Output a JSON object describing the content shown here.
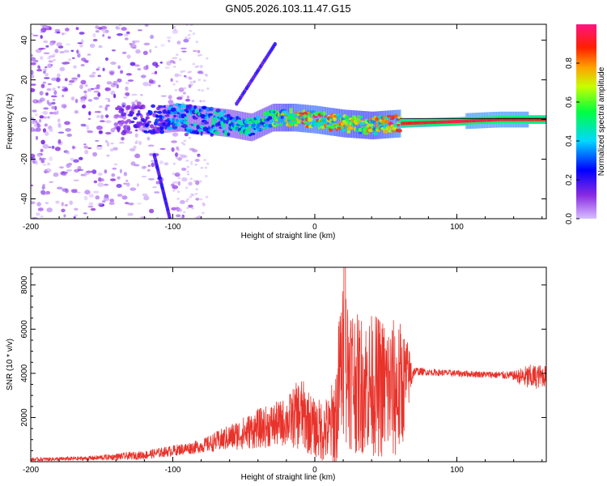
{
  "title": "GN05.2026.103.11.47.G15",
  "colors": {
    "snr_line": "#e8322a",
    "low_amplitude": "#6a1fe8",
    "high_amplitude": "#e8143c"
  },
  "chart_data": [
    {
      "type": "heatmap",
      "title": "GN05.2026.103.11.47.G15",
      "xlabel": "Height of straight line (km)",
      "ylabel": "Frequency (Hz)",
      "xlim": [
        -200,
        163
      ],
      "ylim": [
        -50,
        48
      ],
      "xticks": [
        -200,
        -100,
        0,
        100
      ],
      "yticks": [
        40,
        20,
        0,
        -20,
        -40
      ],
      "colorbar": {
        "label": "Normalized spectral amplitude",
        "range": [
          0.0,
          1.0
        ],
        "ticks": [
          "0.0",
          "0.2",
          "0.4",
          "0.6",
          "0.8"
        ],
        "colormap": "rainbow"
      },
      "ridge": [
        {
          "x": -200,
          "freq": 0,
          "amp": 0.05
        },
        {
          "x": -150,
          "freq": 0,
          "amp": 0.08
        },
        {
          "x": -110,
          "freq": 0,
          "amp": 0.25
        },
        {
          "x": -95,
          "freq": 1,
          "amp": 0.4
        },
        {
          "x": -60,
          "freq": -2,
          "amp": 0.45
        },
        {
          "x": -45,
          "freq": -4,
          "amp": 0.5
        },
        {
          "x": -30,
          "freq": 1,
          "amp": 0.55
        },
        {
          "x": -15,
          "freq": 1,
          "amp": 0.8
        },
        {
          "x": 0,
          "freq": 0,
          "amp": 0.85
        },
        {
          "x": 20,
          "freq": -2,
          "amp": 0.75
        },
        {
          "x": 40,
          "freq": -3,
          "amp": 0.7
        },
        {
          "x": 60,
          "freq": -2,
          "amp": 0.9
        },
        {
          "x": 100,
          "freq": -1,
          "amp": 0.95
        },
        {
          "x": 130,
          "freq": 0,
          "amp": 0.95
        },
        {
          "x": 163,
          "freq": 0,
          "amp": 0.9
        }
      ],
      "noise_region": {
        "x_from": -200,
        "x_to": -78,
        "freq_from": -50,
        "freq_to": 48,
        "amp": 0.1
      },
      "streaks": [
        {
          "label": "descending streak",
          "x": [
            -113,
            -102
          ],
          "freq": [
            -18,
            -50
          ]
        },
        {
          "label": "ascending streak",
          "x": [
            -55,
            -28
          ],
          "freq": [
            8,
            38
          ]
        }
      ]
    },
    {
      "type": "line",
      "xlabel": "Height of straight line (km)",
      "ylabel": "SNR (10 * v/v)",
      "xlim": [
        -200,
        163
      ],
      "ylim": [
        0,
        8800
      ],
      "xticks": [
        -200,
        -100,
        0,
        100
      ],
      "yticks": [
        2000,
        4000,
        6000,
        8000
      ],
      "envelope": {
        "x": [
          -200,
          -160,
          -120,
          -100,
          -80,
          -60,
          -40,
          -20,
          -10,
          0,
          10,
          15,
          18,
          22,
          30,
          40,
          50,
          60,
          65,
          70,
          80,
          100,
          120,
          140,
          150,
          163
        ],
        "center": [
          100,
          150,
          300,
          500,
          700,
          1100,
          1500,
          1800,
          2200,
          1500,
          1400,
          2000,
          4200,
          4500,
          3500,
          3500,
          3300,
          3200,
          3800,
          4100,
          4050,
          4000,
          3950,
          3900,
          3800,
          3900
        ],
        "amp": [
          80,
          100,
          200,
          250,
          300,
          600,
          900,
          1100,
          1700,
          1300,
          1600,
          2500,
          3500,
          3800,
          3200,
          3200,
          3300,
          3200,
          1800,
          200,
          150,
          150,
          150,
          200,
          600,
          500
        ]
      },
      "peak": {
        "x": 21,
        "snr": 8800
      }
    }
  ]
}
